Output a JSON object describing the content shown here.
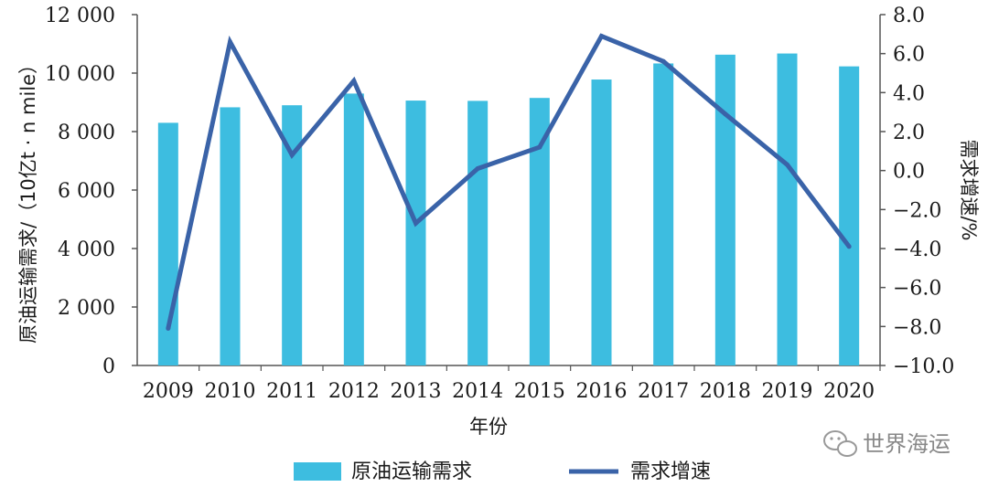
{
  "chart_data": {
    "type": "bar",
    "categories": [
      "2009",
      "2010",
      "2011",
      "2012",
      "2013",
      "2014",
      "2015",
      "2016",
      "2017",
      "2018",
      "2019",
      "2020"
    ],
    "series": [
      {
        "name": "原油运输需求",
        "type": "bar",
        "axis": "left",
        "color": "#3dbde0",
        "values": [
          8300,
          8830,
          8900,
          9300,
          9060,
          9050,
          9150,
          9780,
          10330,
          10630,
          10670,
          10230
        ]
      },
      {
        "name": "需求增速",
        "type": "line",
        "axis": "right",
        "color": "#3a63a8",
        "values": [
          -8.1,
          6.6,
          0.8,
          4.6,
          -2.7,
          0.1,
          1.2,
          6.9,
          5.6,
          2.9,
          0.3,
          -3.9
        ]
      }
    ],
    "xlabel": "年份",
    "ylabel": "原油运输需求/（10亿t · n mile）",
    "y2label": "需求增速/%",
    "ylim": [
      0,
      12000
    ],
    "y2lim": [
      -10,
      8
    ],
    "yticks": [
      "0",
      "2 000",
      "4 000",
      "6 000",
      "8 000",
      "10 000",
      "12 000"
    ],
    "y2ticks": [
      "−10.0",
      "−8.0",
      "−6.0",
      "−4.0",
      "−2.0",
      "0.0",
      "2.0",
      "4.0",
      "6.0",
      "8.0"
    ],
    "legend": [
      "原油运输需求",
      "需求增速"
    ],
    "legend_position": "bottom",
    "grid": false
  },
  "watermark": {
    "text": "世界海运",
    "icon": "wechat-bubble-icon"
  }
}
